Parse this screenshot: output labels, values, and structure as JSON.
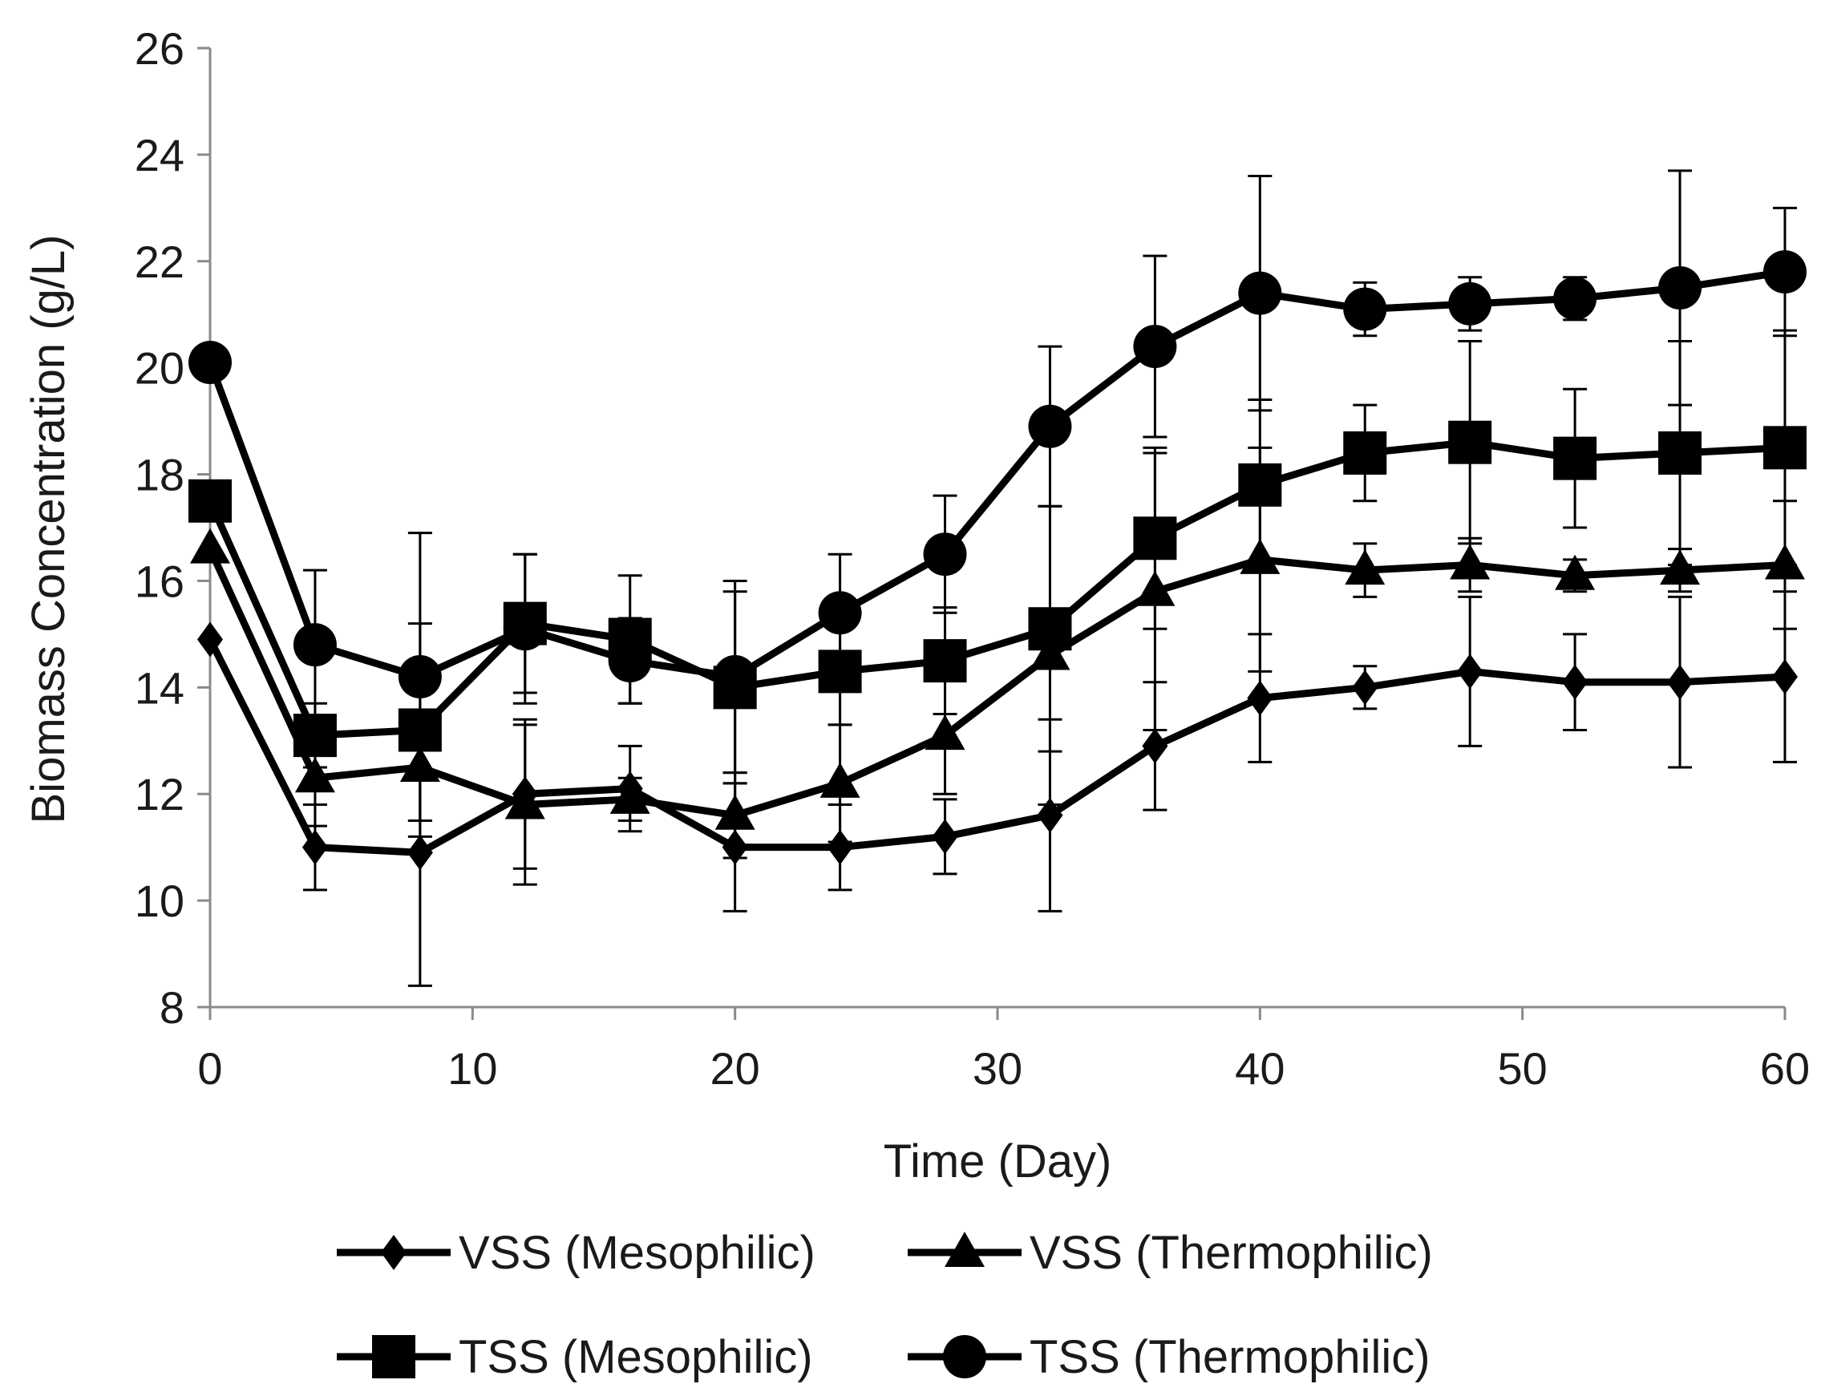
{
  "chart_data": {
    "type": "line",
    "title": "",
    "xlabel": "Time (Day)",
    "ylabel": "Biomass Concentration (g/L)",
    "xlim": [
      0,
      60
    ],
    "ylim": [
      8,
      26
    ],
    "xticks": [
      0,
      10,
      20,
      30,
      40,
      50,
      60
    ],
    "yticks": [
      8,
      10,
      12,
      14,
      16,
      18,
      20,
      22,
      24,
      26
    ],
    "grid": false,
    "legend_position": "bottom",
    "x": [
      0,
      4,
      8,
      12,
      16,
      20,
      24,
      28,
      32,
      36,
      40,
      44,
      48,
      52,
      56,
      60
    ],
    "series": [
      {
        "name": "VSS (Mesophilic)",
        "marker": "diamond",
        "color": "#000000",
        "values": [
          14.9,
          11.0,
          10.9,
          12.0,
          12.1,
          11.0,
          11.0,
          11.2,
          11.6,
          12.9,
          13.8,
          14.0,
          14.3,
          14.1,
          14.1,
          14.2
        ],
        "errors": [
          0,
          0.8,
          2.5,
          1.4,
          0.8,
          1.2,
          0.8,
          0.7,
          1.8,
          1.2,
          1.2,
          0.4,
          1.4,
          0.9,
          1.6,
          1.6
        ]
      },
      {
        "name": "VSS (Thermophilic)",
        "marker": "triangle",
        "color": "#000000",
        "values": [
          16.6,
          12.3,
          12.5,
          11.8,
          11.9,
          11.6,
          12.2,
          13.1,
          14.6,
          15.8,
          16.4,
          16.2,
          16.3,
          16.1,
          16.2,
          16.3
        ],
        "errors": [
          0,
          0.9,
          1.0,
          1.5,
          0.4,
          0.8,
          1.1,
          1.1,
          2.8,
          2.6,
          2.1,
          0.5,
          0.5,
          0.3,
          0.4,
          1.2
        ]
      },
      {
        "name": "TSS (Mesophilic)",
        "marker": "square",
        "color": "#000000",
        "values": [
          17.5,
          13.1,
          13.2,
          15.2,
          14.9,
          14.0,
          14.3,
          14.5,
          15.1,
          16.8,
          17.8,
          18.4,
          18.6,
          18.3,
          18.4,
          18.5
        ],
        "errors": [
          0,
          0.6,
          2.0,
          1.3,
          1.2,
          1.8,
          1.0,
          1.0,
          2.3,
          1.7,
          1.6,
          0.9,
          1.9,
          1.3,
          2.1,
          2.2
        ]
      },
      {
        "name": "TSS (Thermophilic)",
        "marker": "circle",
        "color": "#000000",
        "values": [
          20.1,
          14.8,
          14.2,
          15.1,
          14.5,
          14.2,
          15.4,
          16.5,
          18.9,
          20.4,
          21.4,
          21.1,
          21.2,
          21.3,
          21.5,
          21.8
        ],
        "errors": [
          0,
          1.4,
          2.7,
          1.4,
          0.8,
          1.8,
          1.1,
          1.1,
          1.5,
          1.7,
          2.2,
          0.5,
          0.5,
          0.4,
          2.2,
          1.2
        ]
      }
    ]
  }
}
